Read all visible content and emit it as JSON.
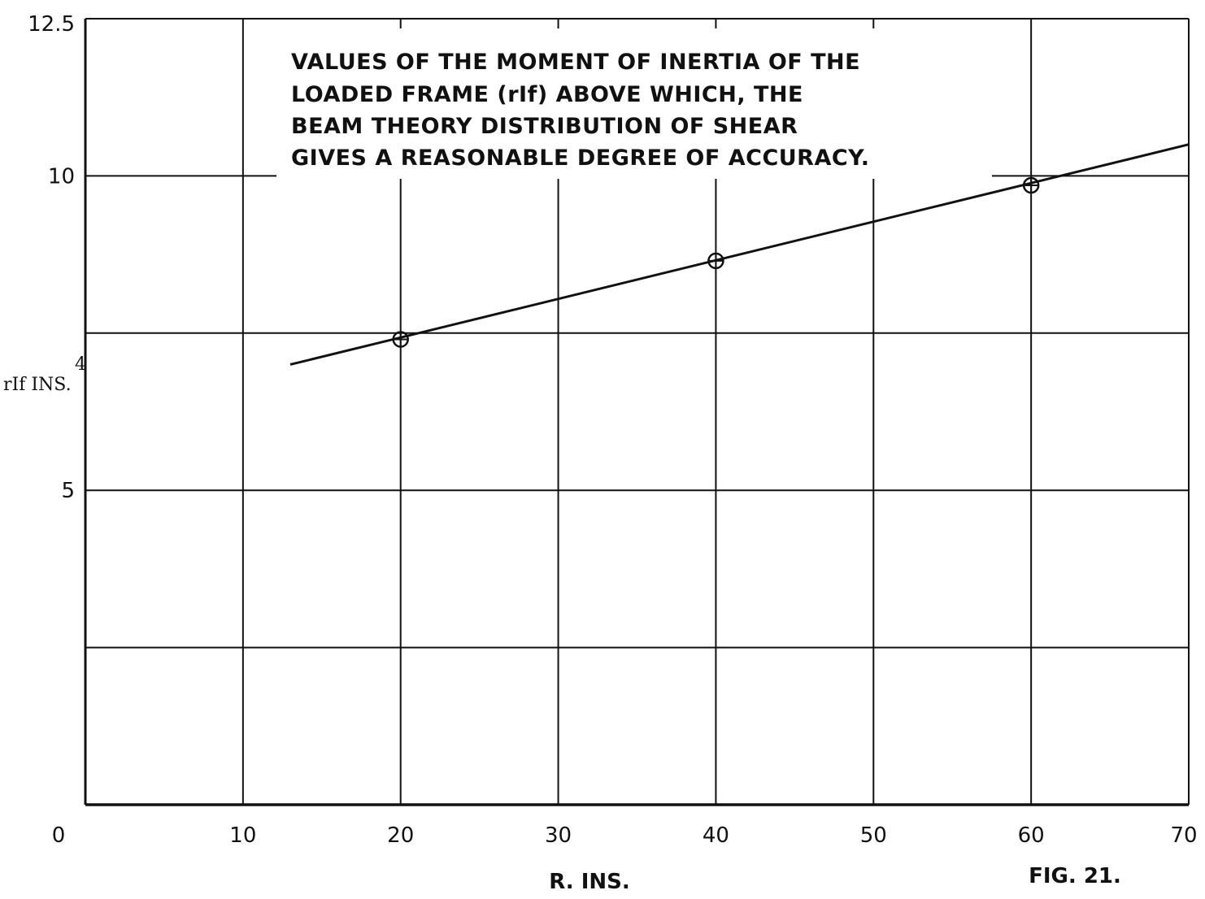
{
  "chart_data": {
    "type": "line",
    "annotation_lines": [
      "VALUES OF THE MOMENT OF INERTIA OF THE",
      "LOADED FRAME (rIf) ABOVE WHICH, THE",
      "BEAM THEORY DISTRIBUTION OF SHEAR",
      "GIVES A REASONABLE DEGREE OF ACCURACY."
    ],
    "xlabel": "R. INS.",
    "ylabel": "rIf INS.",
    "ylabel_superscript": "4",
    "figure_label": "FIG. 21.",
    "xlim": [
      0,
      70
    ],
    "ylim": [
      0,
      12.5
    ],
    "x_ticks": [
      0,
      10,
      20,
      30,
      40,
      50,
      60,
      70
    ],
    "x_tick_labels": [
      "0",
      "10",
      "20",
      "30",
      "40",
      "50",
      "60",
      "70"
    ],
    "y_ticks": [
      5,
      10,
      12.5
    ],
    "y_tick_labels": [
      "5",
      "10",
      "12.5"
    ],
    "y_gridlines": [
      2.5,
      5,
      7.5,
      10
    ],
    "grid": true,
    "series": [
      {
        "points_x": [
          20,
          40,
          60
        ],
        "points_y": [
          7.4,
          8.65,
          9.85
        ],
        "line_x": [
          13,
          70
        ],
        "line_y": [
          7.0,
          10.5
        ]
      }
    ],
    "colors": {
      "ink": "#111111",
      "background": "#ffffff"
    }
  }
}
